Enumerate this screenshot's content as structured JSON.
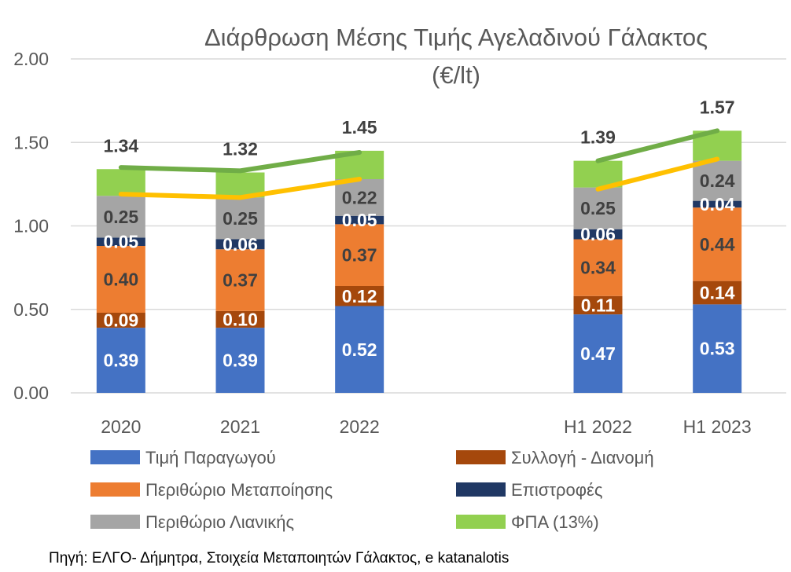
{
  "chart_data": {
    "type": "bar",
    "stacked": true,
    "title": "Διάρθρωση Μέσης Τιμής Αγελαδινού Γάλακτος",
    "subtitle": "(€/lt)",
    "categories": [
      "2020",
      "2021",
      "2022",
      "",
      "H1 2022",
      "H1 2023"
    ],
    "ylim": [
      0,
      2.0
    ],
    "yticks": [
      "0.00",
      "0.50",
      "1.00",
      "1.50",
      "2.00"
    ],
    "grid": true,
    "legend_placement": "bottom",
    "series": [
      {
        "name": "Τιμή Παραγωγού",
        "color": "#4472C4",
        "label_color": "#ffffff",
        "values": [
          0.39,
          0.39,
          0.52,
          null,
          0.47,
          0.53
        ],
        "labels": [
          "0.39",
          "0.39",
          "0.52",
          "",
          "0.47",
          "0.53"
        ]
      },
      {
        "name": "Συλλογή - Διανομή",
        "color": "#A5480C",
        "label_color": "#ffffff",
        "values": [
          0.09,
          0.1,
          0.12,
          null,
          0.11,
          0.14
        ],
        "labels": [
          "0.09",
          "0.10",
          "0.12",
          "",
          "0.11",
          "0.14"
        ]
      },
      {
        "name": "Περιθώριο Μεταποίησης",
        "color": "#ED7D31",
        "label_color": "#404040",
        "values": [
          0.4,
          0.37,
          0.37,
          null,
          0.34,
          0.44
        ],
        "labels": [
          "0.40",
          "0.37",
          "0.37",
          "",
          "0.34",
          "0.44"
        ]
      },
      {
        "name": "Επιστροφές",
        "color": "#203864",
        "label_color": "#ffffff",
        "values": [
          0.05,
          0.06,
          0.05,
          null,
          0.06,
          0.04
        ],
        "labels": [
          "0.05",
          "0.06",
          "0.05",
          "",
          "0.06",
          "0.04"
        ]
      },
      {
        "name": "Περιθώριο Λιανικής",
        "color": "#A5A5A5",
        "label_color": "#404040",
        "values": [
          0.25,
          0.25,
          0.22,
          null,
          0.25,
          0.24
        ],
        "labels": [
          "0.25",
          "0.25",
          "0.22",
          "",
          "0.25",
          "0.24"
        ]
      },
      {
        "name": "ΦΠΑ (13%)",
        "color": "#92D050",
        "label_color": "#404040",
        "values": [
          0.16,
          0.15,
          0.17,
          null,
          0.16,
          0.18
        ],
        "labels": [
          "",
          "",
          "",
          "",
          "",
          ""
        ]
      }
    ],
    "totals": [
      "1.34",
      "1.32",
      "1.45",
      "",
      "1.39",
      "1.57"
    ],
    "lines": [
      {
        "color": "#70AD47",
        "values": [
          1.35,
          1.33,
          1.44,
          null,
          1.39,
          1.57
        ]
      },
      {
        "color": "#FFC000",
        "values": [
          1.19,
          1.17,
          1.28,
          null,
          1.22,
          1.4
        ]
      }
    ],
    "source": "Πηγή: ΕΛΓΟ- Δήμητρα, Στοιχεία Μεταποιητών Γάλακτος, e katanalotis"
  }
}
